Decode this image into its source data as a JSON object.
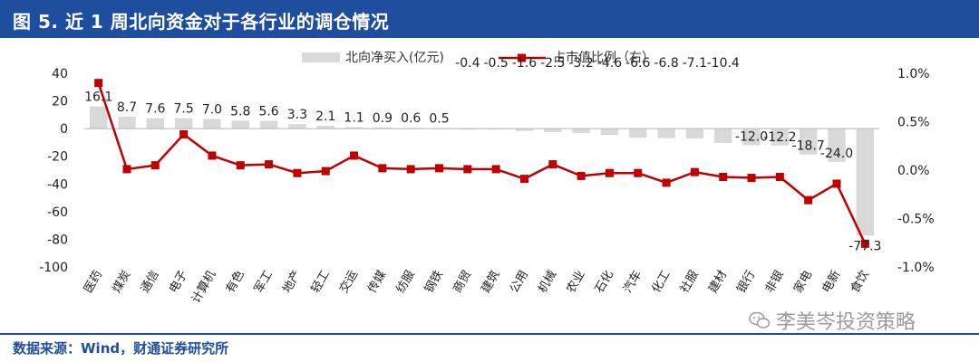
{
  "header": {
    "title": "图 5. 近 1 周北向资金对于各行业的调仓情况"
  },
  "footer": {
    "source": "数据来源：Wind，财通证券研究所"
  },
  "watermark": {
    "text": "李美岑投资策略",
    "icon": "wechat-icon"
  },
  "colors": {
    "header_bg": "#1f4e9e",
    "bar": "#d9d9d9",
    "line": "#c00000"
  },
  "chart_data": {
    "type": "bar",
    "categories": [
      "医药",
      "煤炭",
      "通信",
      "电子",
      "计算机",
      "有色",
      "军工",
      "地产",
      "轻工",
      "交运",
      "传媒",
      "纺服",
      "钢铁",
      "商贸",
      "建筑",
      "公用",
      "机械",
      "农业",
      "石化",
      "汽车",
      "化工",
      "社服",
      "建材",
      "银行",
      "非银",
      "家电",
      "电新",
      "食饮"
    ],
    "series": [
      {
        "name": "北向净买入(亿元)",
        "axis": "left",
        "type": "bar",
        "values": [
          16.1,
          8.7,
          7.6,
          7.5,
          7.0,
          5.8,
          5.6,
          3.3,
          2.1,
          1.1,
          0.9,
          0.6,
          0.5,
          -0.4,
          -0.5,
          -1.6,
          -2.5,
          -3.2,
          -4.6,
          -6.6,
          -6.8,
          -7.1,
          -10.4,
          -12.0,
          -12.2,
          -18.7,
          -24.0,
          -77.3
        ]
      },
      {
        "name": "占市值比例（右）",
        "axis": "right",
        "type": "line",
        "values": [
          0.9,
          0.01,
          0.05,
          0.37,
          0.15,
          0.05,
          0.06,
          -0.03,
          -0.01,
          0.15,
          0.02,
          0.01,
          0.02,
          0.01,
          0.01,
          -0.09,
          0.06,
          -0.06,
          -0.03,
          -0.03,
          -0.13,
          -0.02,
          -0.07,
          -0.08,
          -0.07,
          -0.31,
          -0.14,
          -0.76
        ]
      }
    ],
    "bar_labels": [
      "16.1",
      "8.7",
      "7.6",
      "7.5",
      "7.0",
      "5.8",
      "5.6",
      "3.3",
      "2.1",
      "1.1",
      "0.9",
      "0.6",
      "0.5",
      "-0.4",
      "-0.5",
      "-1.6",
      "-2.5",
      "-3.2",
      "-4.6",
      "-6.6",
      "-6.8",
      "-7.1",
      "-10.4",
      "-12.0",
      "-12.2",
      "-18.7",
      "-24.0",
      "-77.3"
    ],
    "y_left": {
      "min": -100,
      "max": 40,
      "ticks": [
        40,
        20,
        0,
        -20,
        -40,
        -60,
        -80,
        -100
      ],
      "tick_labels": [
        "40",
        "20",
        "0",
        "-20",
        "-40",
        "-60",
        "-80",
        "-100"
      ]
    },
    "y_right": {
      "min": -1.0,
      "max": 1.0,
      "ticks": [
        1.0,
        0.5,
        0.0,
        -0.5,
        -1.0
      ],
      "tick_labels": [
        "1.0%",
        "0.5%",
        "0.0%",
        "-0.5%",
        "-1.0%"
      ]
    },
    "legend": {
      "position": "top-center",
      "items": [
        "北向净买入(亿元)",
        "占市值比例（右）"
      ]
    },
    "grid": false
  }
}
